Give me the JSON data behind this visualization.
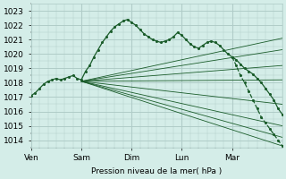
{
  "background_color": "#d4ede8",
  "grid_color": "#b0ccc8",
  "line_color": "#1a5c2a",
  "dot_color": "#1a5c2a",
  "ylabel_text": "Pression niveau de la mer( hPa )",
  "x_tick_labels": [
    "Ven",
    "Sam",
    "Dim",
    "Lun",
    "Mar"
  ],
  "x_tick_positions": [
    0,
    24,
    48,
    72,
    96
  ],
  "ylim": [
    1013.5,
    1023.5
  ],
  "xlim": [
    0,
    120
  ],
  "yticks": [
    1014,
    1015,
    1016,
    1017,
    1018,
    1019,
    1020,
    1021,
    1022,
    1023
  ],
  "minor_yticks": 0.5,
  "fan_origin_x": 24,
  "fan_origin_y": 1018.1,
  "fan_endpoints": [
    [
      120,
      1013.6
    ],
    [
      120,
      1014.2
    ],
    [
      120,
      1015.0
    ],
    [
      120,
      1016.5
    ],
    [
      120,
      1018.2
    ],
    [
      120,
      1019.2
    ],
    [
      120,
      1020.3
    ],
    [
      120,
      1021.1
    ]
  ],
  "main_curve_x": [
    0,
    2,
    4,
    6,
    8,
    10,
    12,
    14,
    16,
    18,
    20,
    22,
    24,
    26,
    28,
    30,
    32,
    34,
    36,
    38,
    40,
    42,
    44,
    46,
    48,
    50,
    52,
    54,
    56,
    58,
    60,
    62,
    64,
    66,
    68,
    70,
    72,
    74,
    76,
    78,
    80,
    82,
    84,
    86,
    88,
    90,
    92,
    94,
    96,
    98,
    100,
    102,
    104,
    106,
    108,
    110,
    112,
    114,
    116,
    118,
    120
  ],
  "main_curve_y": [
    1017.1,
    1017.3,
    1017.6,
    1017.9,
    1018.1,
    1018.2,
    1018.3,
    1018.2,
    1018.3,
    1018.4,
    1018.5,
    1018.3,
    1018.2,
    1018.8,
    1019.2,
    1019.8,
    1020.3,
    1020.8,
    1021.2,
    1021.6,
    1021.9,
    1022.1,
    1022.3,
    1022.4,
    1022.2,
    1022.0,
    1021.7,
    1021.4,
    1021.2,
    1021.0,
    1020.9,
    1020.8,
    1020.9,
    1021.0,
    1021.2,
    1021.5,
    1021.3,
    1021.0,
    1020.7,
    1020.5,
    1020.4,
    1020.6,
    1020.8,
    1020.9,
    1020.8,
    1020.6,
    1020.3,
    1020.0,
    1019.8,
    1019.6,
    1019.3,
    1019.0,
    1018.8,
    1018.6,
    1018.3,
    1018.0,
    1017.6,
    1017.2,
    1016.8,
    1016.2,
    1015.8
  ],
  "dotted_curve_x": [
    96,
    98,
    100,
    102,
    104,
    106,
    108,
    110,
    112,
    114,
    116,
    118,
    120
  ],
  "dotted_curve_y": [
    1019.8,
    1019.2,
    1018.5,
    1018.0,
    1017.4,
    1016.8,
    1016.2,
    1015.6,
    1015.2,
    1014.8,
    1014.4,
    1014.0,
    1013.6
  ],
  "main_curve_dots": true,
  "dotted_curve_dots": true
}
